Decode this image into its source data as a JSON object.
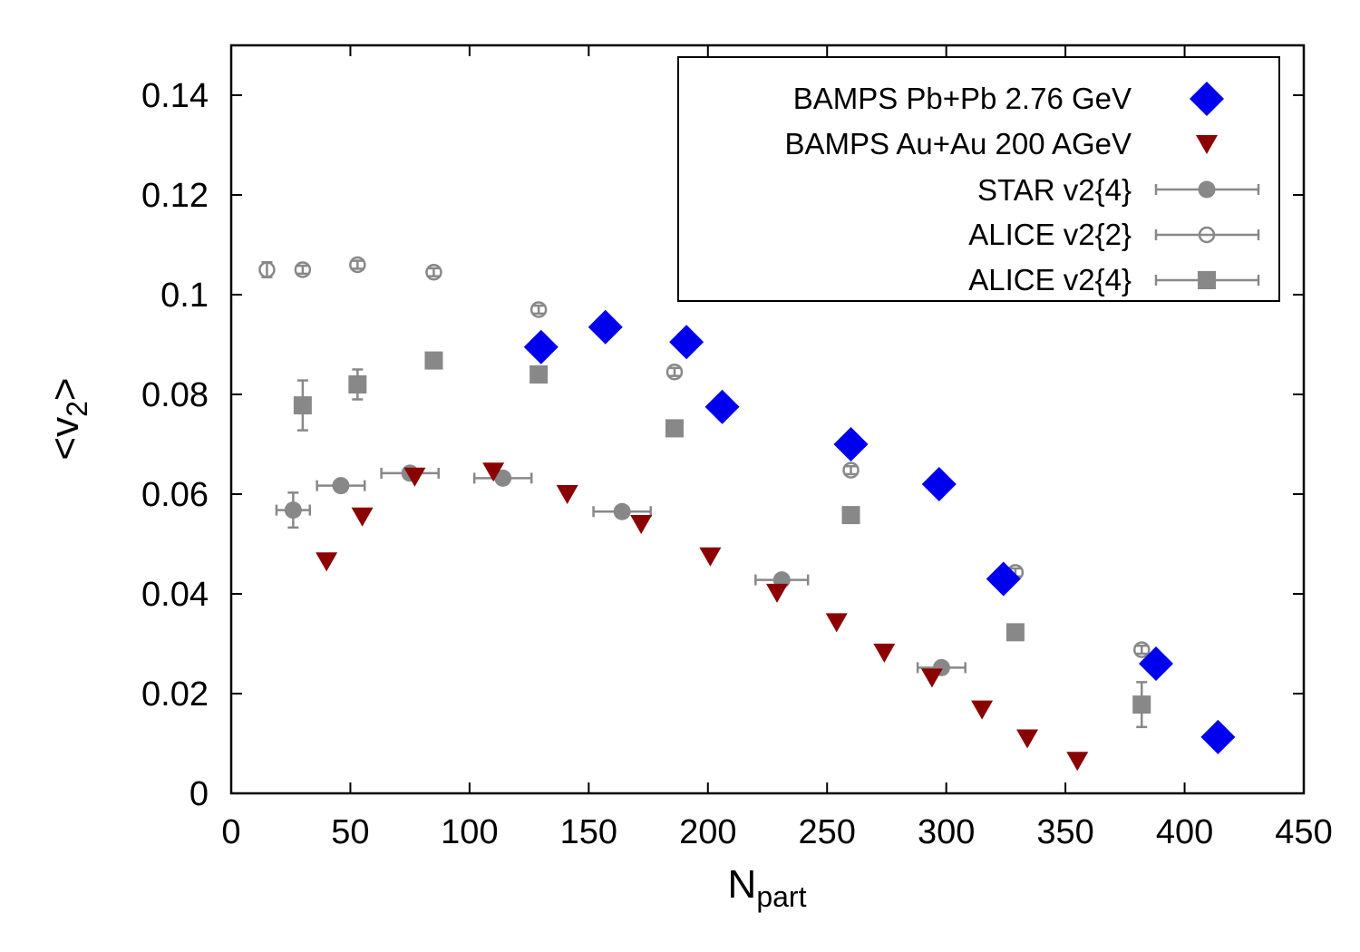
{
  "chart_data": {
    "type": "scatter",
    "xlabel": "N",
    "xlabel_sub": "part",
    "ylabel_prefix": "<v",
    "ylabel_sub": "2",
    "ylabel_suffix": ">",
    "xlim": [
      0,
      450
    ],
    "ylim": [
      0,
      0.15
    ],
    "xticks": [
      0,
      50,
      100,
      150,
      200,
      250,
      300,
      350,
      400,
      450
    ],
    "xtick_labels": [
      "0",
      "50",
      "100",
      "150",
      "200",
      "250",
      "300",
      "350",
      "400",
      "450"
    ],
    "yticks": [
      0,
      0.02,
      0.04,
      0.06,
      0.08,
      0.1,
      0.12,
      0.14
    ],
    "ytick_labels": [
      "0",
      "0.02",
      "0.04",
      "0.06",
      "0.08",
      "0.1",
      "0.12",
      "0.14"
    ],
    "grid": false,
    "legend_position": "top-right",
    "series": [
      {
        "name": "BAMPS Pb+Pb 2.76 GeV",
        "marker": "diamond",
        "color": "#0000ee",
        "points": [
          {
            "x": 130,
            "y": 0.0895
          },
          {
            "x": 157,
            "y": 0.0935
          },
          {
            "x": 191,
            "y": 0.0905
          },
          {
            "x": 206,
            "y": 0.0775
          },
          {
            "x": 260,
            "y": 0.07
          },
          {
            "x": 297,
            "y": 0.062
          },
          {
            "x": 324,
            "y": 0.043
          },
          {
            "x": 388,
            "y": 0.026
          },
          {
            "x": 414,
            "y": 0.0113
          }
        ]
      },
      {
        "name": "BAMPS Au+Au 200 AGeV",
        "marker": "triangle-down",
        "color": "#8b0000",
        "points": [
          {
            "x": 40,
            "y": 0.0465
          },
          {
            "x": 55,
            "y": 0.0555
          },
          {
            "x": 77,
            "y": 0.0635
          },
          {
            "x": 110,
            "y": 0.0645
          },
          {
            "x": 141,
            "y": 0.06
          },
          {
            "x": 172,
            "y": 0.054
          },
          {
            "x": 201,
            "y": 0.0475
          },
          {
            "x": 229,
            "y": 0.0402
          },
          {
            "x": 254,
            "y": 0.0343
          },
          {
            "x": 274,
            "y": 0.0282
          },
          {
            "x": 294,
            "y": 0.0232
          },
          {
            "x": 315,
            "y": 0.0168
          },
          {
            "x": 334,
            "y": 0.011
          },
          {
            "x": 355,
            "y": 0.0065
          }
        ]
      },
      {
        "name": "STAR v2{4}",
        "marker": "circle-filled",
        "color": "#888888",
        "points": [
          {
            "x": 26,
            "y": 0.0568,
            "xerr": 7,
            "yerr": 0.0035
          },
          {
            "x": 46,
            "y": 0.0617,
            "xerr": 10,
            "yerr": 0.0005
          },
          {
            "x": 75,
            "y": 0.0642,
            "xerr": 12,
            "yerr": 0.0005
          },
          {
            "x": 114,
            "y": 0.0632,
            "xerr": 12,
            "yerr": 0.0005
          },
          {
            "x": 164,
            "y": 0.0565,
            "xerr": 12,
            "yerr": 0.0005
          },
          {
            "x": 231,
            "y": 0.0428,
            "xerr": 11,
            "yerr": 0.0005
          },
          {
            "x": 298,
            "y": 0.0252,
            "xerr": 10,
            "yerr": 0.0005
          }
        ]
      },
      {
        "name": "ALICE v2{2}",
        "marker": "circle-open",
        "color": "#888888",
        "points": [
          {
            "x": 15,
            "y": 0.105,
            "yerr": 0.0015
          },
          {
            "x": 30,
            "y": 0.105,
            "yerr": 0.0008
          },
          {
            "x": 53,
            "y": 0.106,
            "yerr": 0.0008
          },
          {
            "x": 85,
            "y": 0.1045,
            "yerr": 0.0008
          },
          {
            "x": 129,
            "y": 0.097,
            "yerr": 0.0008
          },
          {
            "x": 186,
            "y": 0.0845,
            "yerr": 0.0008
          },
          {
            "x": 260,
            "y": 0.0648,
            "yerr": 0.0008
          },
          {
            "x": 329,
            "y": 0.0443,
            "yerr": 0.0008
          },
          {
            "x": 382,
            "y": 0.0288,
            "yerr": 0.0008
          }
        ]
      },
      {
        "name": "ALICE v2{4}",
        "marker": "square-filled",
        "color": "#888888",
        "points": [
          {
            "x": 30,
            "y": 0.0778,
            "yerr": 0.005
          },
          {
            "x": 53,
            "y": 0.082,
            "yerr": 0.003
          },
          {
            "x": 85,
            "y": 0.0868,
            "yerr": 0.001
          },
          {
            "x": 129,
            "y": 0.084,
            "yerr": 0.0008
          },
          {
            "x": 186,
            "y": 0.0732,
            "yerr": 0.0008
          },
          {
            "x": 260,
            "y": 0.0558,
            "yerr": 0.0008
          },
          {
            "x": 329,
            "y": 0.0323,
            "yerr": 0.0008
          },
          {
            "x": 382,
            "y": 0.0178,
            "yerr": 0.0045
          }
        ]
      }
    ]
  }
}
